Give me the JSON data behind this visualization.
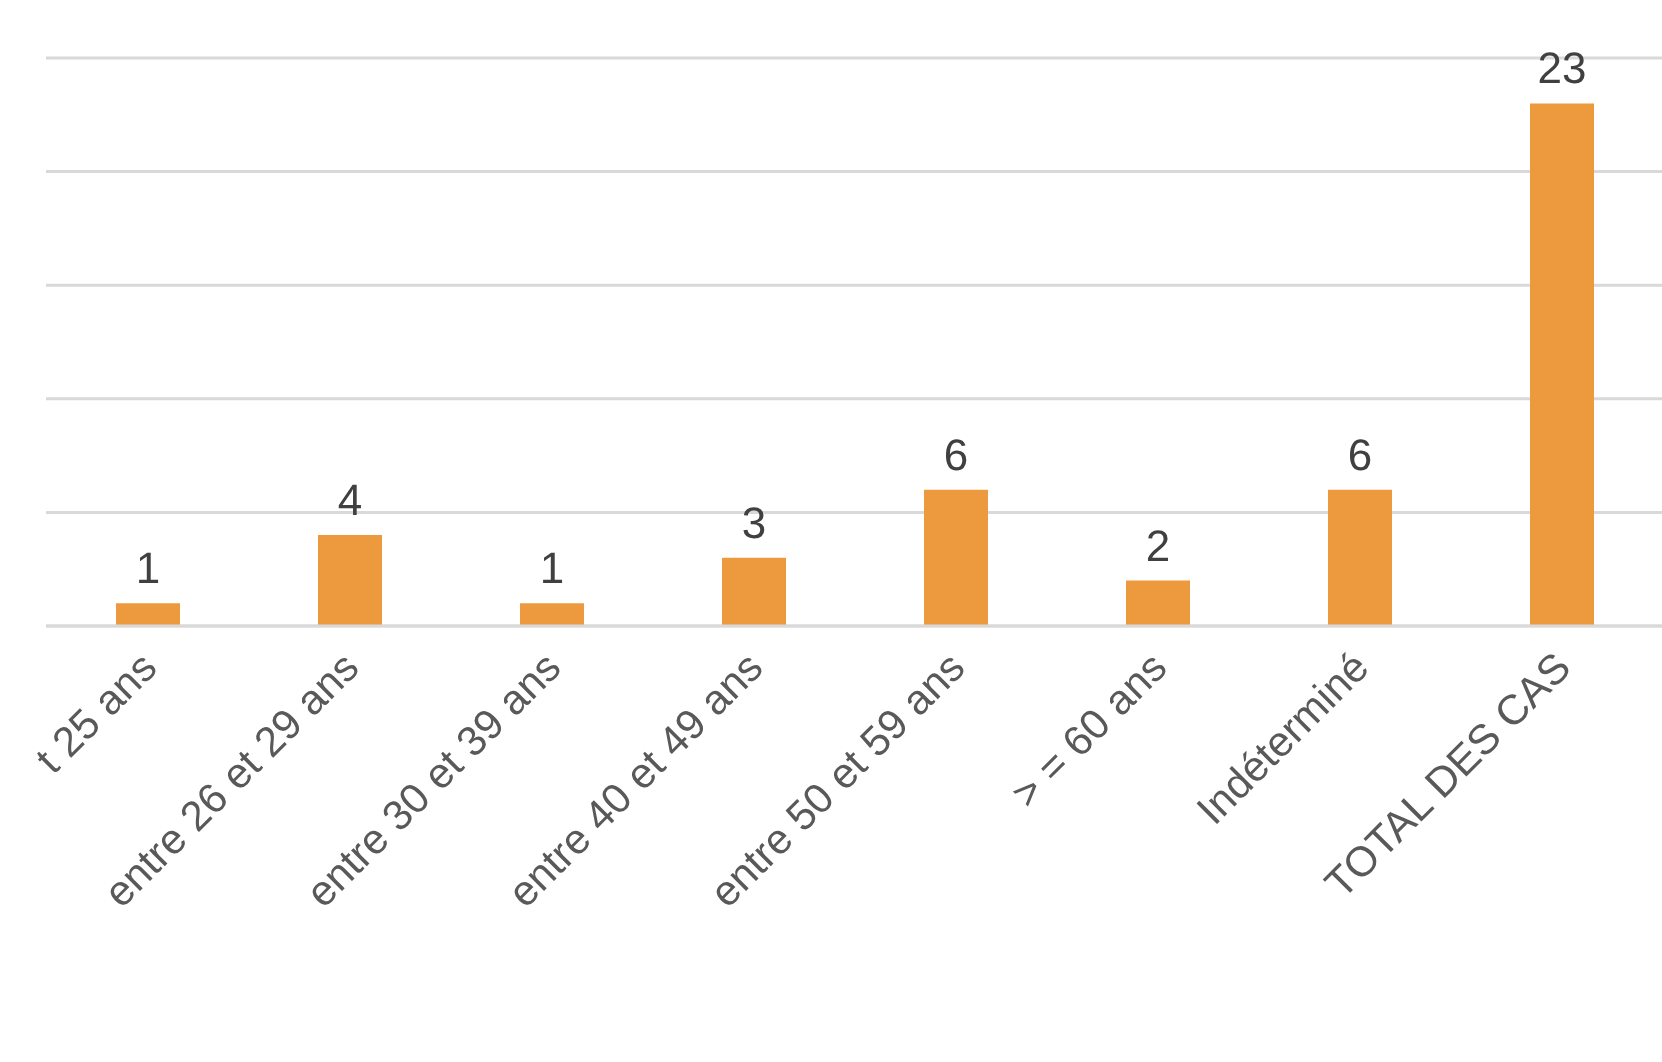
{
  "chart_data": {
    "type": "bar",
    "categories": [
      "t 25 ans",
      "entre 26 et 29 ans",
      "entre 30 et 39 ans",
      "entre 40 et 49 ans",
      "entre 50 et 59 ans",
      ">  =  60 ans",
      "Indéterminé",
      "TOTAL DES CAS"
    ],
    "values": [
      1,
      4,
      1,
      3,
      6,
      2,
      6,
      23
    ],
    "color": "#ed9a3e",
    "ylim": [
      0,
      25
    ],
    "yticks": [
      {
        "value": 0,
        "label": null
      },
      {
        "value": 5,
        "label": null
      },
      {
        "value": 10,
        "label": null
      },
      {
        "value": 15,
        "label": null
      },
      {
        "value": 20,
        "label": null
      },
      {
        "value": 25,
        "label": null
      }
    ],
    "grid": "y",
    "tick_labels": "x",
    "data_labels": true,
    "legend": false
  }
}
